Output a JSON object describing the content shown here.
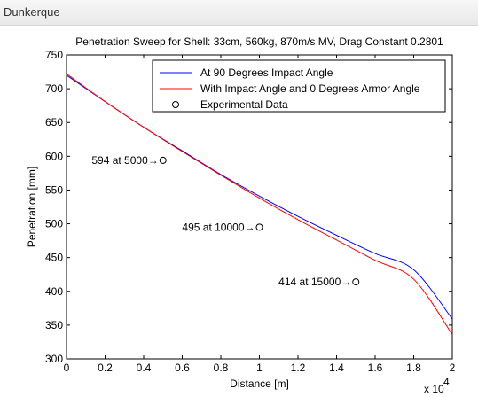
{
  "window": {
    "title": "Dunkerque"
  },
  "chart_data": {
    "type": "line",
    "title": "Penetration Sweep for Shell: 33cm, 560kg, 870m/s MV, Drag Constant 0.2801",
    "xlabel": "Distance [m]",
    "ylabel": "Penetration [mm]",
    "xlim": [
      0,
      20000
    ],
    "ylim": [
      300,
      750
    ],
    "x_ticks": [
      0,
      2000,
      4000,
      6000,
      8000,
      10000,
      12000,
      14000,
      16000,
      18000,
      20000
    ],
    "x_tick_labels": [
      "0",
      "0.2",
      "0.4",
      "0.6",
      "0.8",
      "1",
      "1.2",
      "1.4",
      "1.6",
      "1.8",
      "2"
    ],
    "x_multiplier_label": "x 10",
    "x_multiplier_exponent": "4",
    "y_ticks": [
      300,
      350,
      400,
      450,
      500,
      550,
      600,
      650,
      700,
      750
    ],
    "y_tick_labels": [
      "300",
      "350",
      "400",
      "450",
      "500",
      "550",
      "600",
      "650",
      "700",
      "750"
    ],
    "legend_position": "top-right",
    "series": [
      {
        "name": "At 90 Degrees Impact Angle",
        "color": "#0000ff",
        "x": [
          0,
          2000,
          4000,
          6000,
          8000,
          10000,
          12000,
          14000,
          16000,
          18000,
          20000
        ],
        "y": [
          720,
          681,
          643,
          608,
          573,
          541,
          511,
          483,
          456,
          432,
          359
        ]
      },
      {
        "name": "With Impact Angle and 0 Degrees Armor Angle",
        "color": "#ff0000",
        "x": [
          0,
          2000,
          4000,
          6000,
          8000,
          10000,
          12000,
          14000,
          16000,
          18000,
          20000
        ],
        "y": [
          722,
          681,
          643,
          607,
          572,
          538,
          506,
          476,
          446,
          418,
          336
        ]
      }
    ],
    "experimental": {
      "name": "Experimental Data",
      "x": [
        5000,
        10000,
        15000
      ],
      "y": [
        594,
        495,
        414
      ],
      "labels": [
        "594 at 5000",
        "495 at 10000",
        "414 at 15000"
      ]
    }
  }
}
